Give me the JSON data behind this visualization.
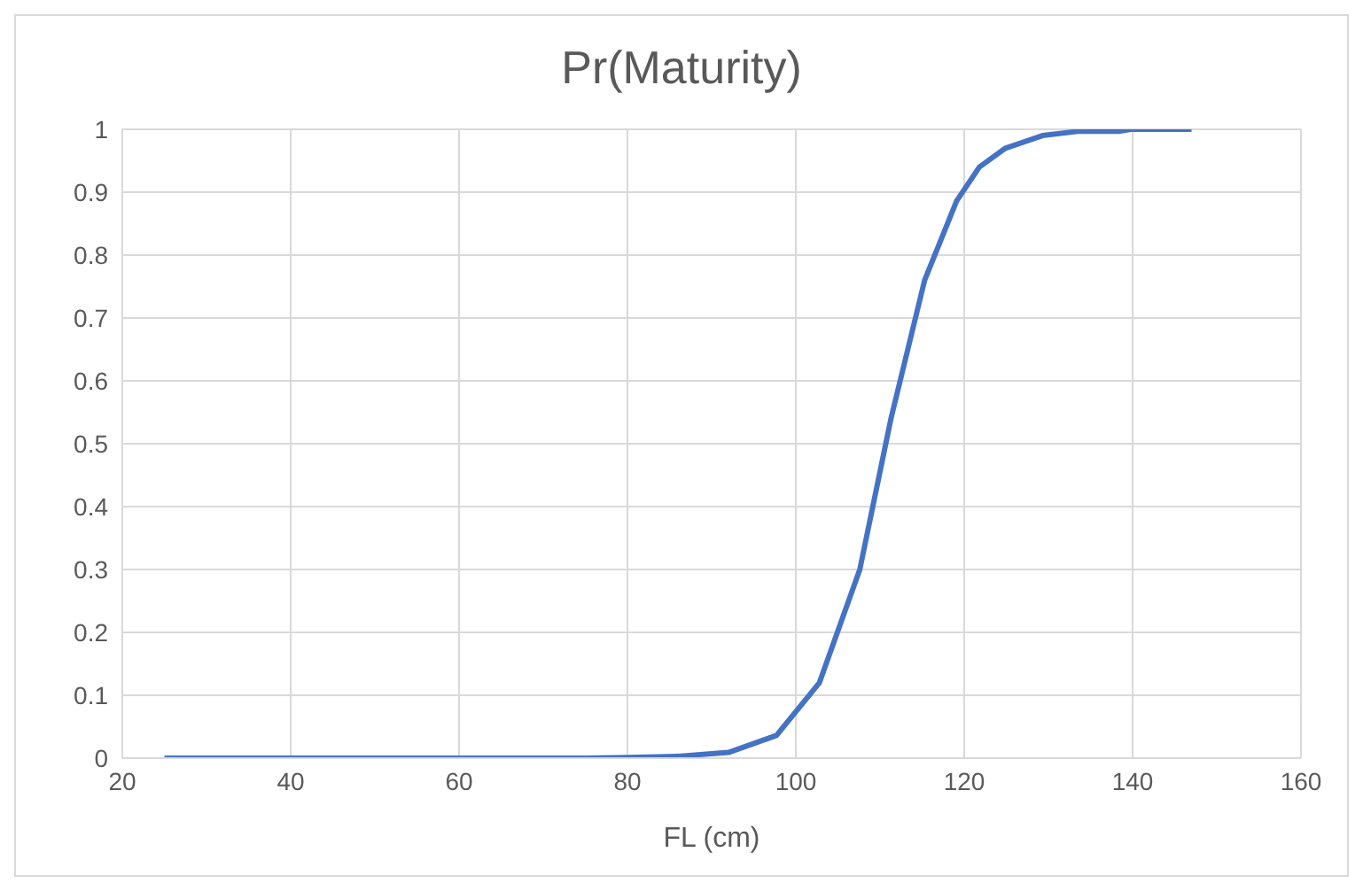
{
  "chart_data": {
    "type": "line",
    "title": "Pr(Maturity)",
    "xlabel": "FL (cm)",
    "x": [
      25,
      35,
      45,
      55,
      65,
      75,
      80,
      86,
      92,
      97.7,
      102.8,
      107.6,
      111.3,
      115.3,
      119.1,
      121.8,
      124.9,
      129.3,
      133.7,
      138.5,
      139.8,
      147
    ],
    "series": [
      {
        "color": "#4472c4",
        "values": [
          0,
          0,
          0,
          0,
          0,
          0,
          0.001,
          0.003,
          0.009,
          0.036,
          0.12,
          0.3,
          0.54,
          0.76,
          0.886,
          0.94,
          0.97,
          0.99,
          0.997,
          0.997,
          1,
          1
        ]
      }
    ],
    "xlim": [
      20,
      160
    ],
    "xticks": [
      20,
      40,
      60,
      80,
      100,
      120,
      140,
      160
    ],
    "ylim": [
      0,
      1
    ],
    "yticks": [
      0,
      0.1,
      0.2,
      0.3,
      0.4,
      0.5,
      0.6,
      0.7,
      0.8,
      0.9,
      1
    ],
    "grid": true,
    "marker": "none",
    "line_style": "solid"
  }
}
